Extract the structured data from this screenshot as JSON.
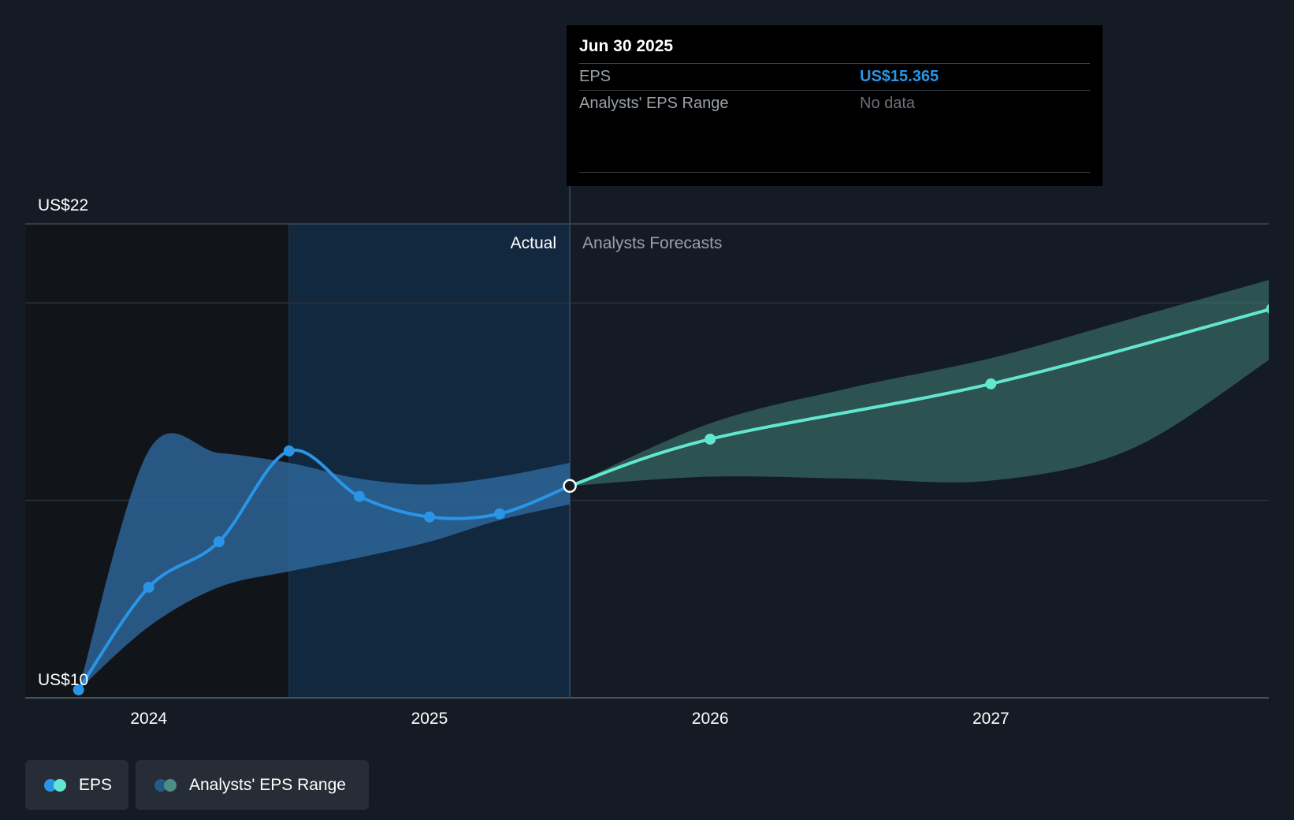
{
  "tooltip": {
    "date": "Jun 30 2025",
    "eps_label": "EPS",
    "eps_value": "US$15.365",
    "range_label": "Analysts' EPS Range",
    "range_value": "No data"
  },
  "legend": {
    "eps_label": "EPS",
    "range_label": "Analysts' EPS Range"
  },
  "colors": {
    "background": "#151b24",
    "actual_eps": "#2a95e6",
    "forecast_eps": "#62e6cf",
    "actual_range": "#2f6ea5",
    "forecast_range": "#3f7f78"
  },
  "chart_data": {
    "type": "line",
    "y_labels": [
      "US$22",
      "US$10"
    ],
    "ylim": [
      10,
      22
    ],
    "xlim": [
      2023.56,
      2027.99
    ],
    "x_ticks": [
      {
        "value": 2024.0,
        "label": "2024"
      },
      {
        "value": 2025.0,
        "label": "2025"
      },
      {
        "value": 2026.0,
        "label": "2026"
      },
      {
        "value": 2027.0,
        "label": "2027"
      }
    ],
    "gridlines": [
      22,
      20,
      15,
      10
    ],
    "divider_x": 2025.5,
    "highlight_start": 2024.5,
    "section_labels": {
      "actual": "Actual",
      "forecast": "Analysts Forecasts"
    },
    "series": [
      {
        "name": "EPS (actual)",
        "x": [
          2023.75,
          2024.0,
          2024.25,
          2024.5,
          2024.75,
          2025.0,
          2025.25,
          2025.5
        ],
        "values": [
          10.2,
          12.8,
          13.95,
          16.25,
          15.1,
          14.58,
          14.66,
          15.365
        ]
      },
      {
        "name": "EPS (forecast)",
        "x": [
          2025.5,
          2026.0,
          2027.0,
          2028.0
        ],
        "values": [
          15.365,
          16.55,
          17.95,
          19.85
        ]
      }
    ],
    "ranges": [
      {
        "name": "Analysts' EPS Range (actual)",
        "x": [
          2023.75,
          2024.0,
          2024.25,
          2024.5,
          2024.75,
          2025.0,
          2025.25,
          2025.5
        ],
        "upper": [
          10.2,
          16.26,
          16.2,
          15.95,
          15.55,
          15.4,
          15.6,
          15.95
        ],
        "lower": [
          10.2,
          11.8,
          12.8,
          13.2,
          13.55,
          13.95,
          14.5,
          14.9
        ]
      },
      {
        "name": "Analysts' EPS Range (forecast)",
        "x": [
          2025.5,
          2026.0,
          2026.5,
          2027.0,
          2027.5,
          2028.0
        ],
        "upper": [
          15.365,
          16.95,
          17.85,
          18.6,
          19.6,
          20.6
        ],
        "lower": [
          15.365,
          15.6,
          15.55,
          15.5,
          16.3,
          18.6
        ]
      }
    ],
    "highlight_point": {
      "x": 2025.5,
      "value": 15.365
    }
  }
}
